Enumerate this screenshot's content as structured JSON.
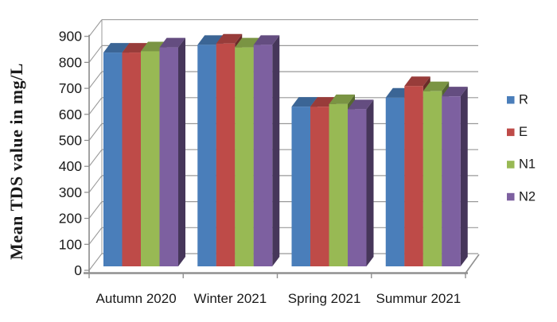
{
  "chart_data": {
    "type": "bar",
    "style": "3d-clustered-column",
    "title": "",
    "xlabel": "",
    "ylabel": "Mean TDS value in mg/L",
    "ylim": [
      0,
      900
    ],
    "ytick_step": 100,
    "y_tick_labels": [
      "0",
      "100",
      "200",
      "300",
      "400",
      "500",
      "600",
      "700",
      "800",
      "900"
    ],
    "grid": true,
    "legend_position": "right",
    "categories": [
      "Autumn 2020",
      "Winter 2021",
      "Spring 2021",
      "Summur 2021"
    ],
    "series": [
      {
        "name": "R",
        "color": "#4A7EBA",
        "values": [
          830,
          860,
          620,
          655
        ]
      },
      {
        "name": "E",
        "color": "#BE4B48",
        "values": [
          830,
          865,
          620,
          700
        ]
      },
      {
        "name": "N1",
        "color": "#98B954",
        "values": [
          835,
          850,
          630,
          680
        ]
      },
      {
        "name": "N2",
        "color": "#7D60A0",
        "values": [
          850,
          860,
          610,
          660
        ]
      }
    ]
  },
  "colors": {
    "background": "#ffffff",
    "gridline": "#999999",
    "axis": "#8a8a8a",
    "floor": "#909090",
    "text": "#1a1a1a"
  }
}
